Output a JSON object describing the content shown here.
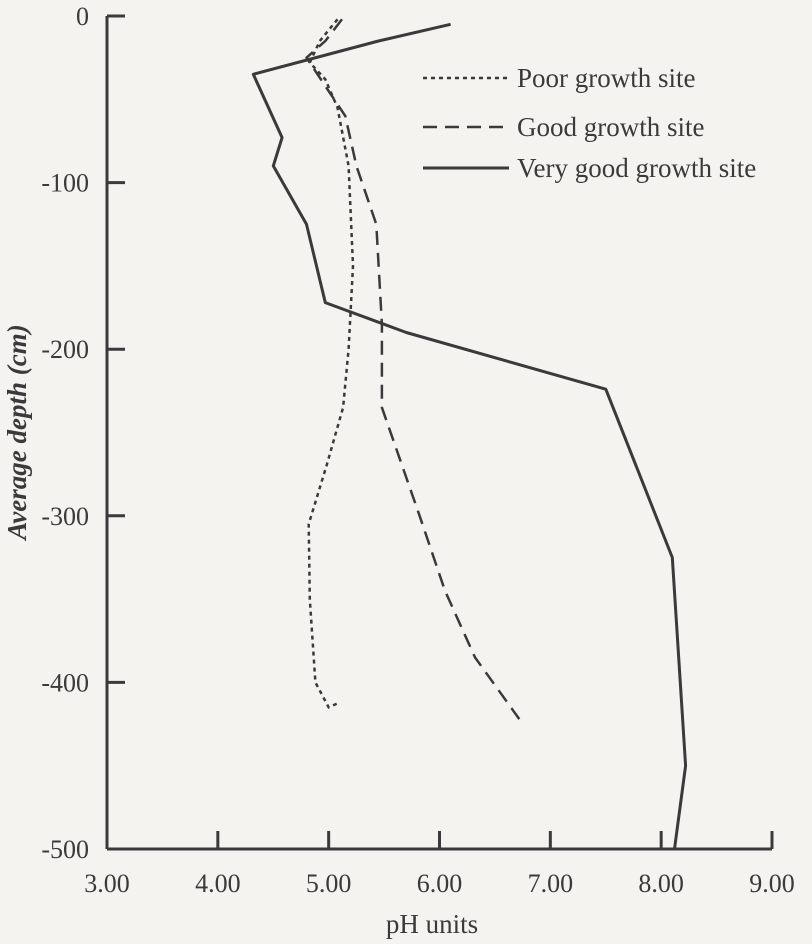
{
  "chart_data": {
    "type": "line",
    "title": "",
    "xlabel": "pH units",
    "ylabel": "Average depth (cm)",
    "xlim": [
      3.0,
      9.0
    ],
    "ylim": [
      -500,
      0
    ],
    "x_ticks": [
      3.0,
      4.0,
      5.0,
      6.0,
      7.0,
      8.0,
      9.0
    ],
    "x_tick_labels": [
      "3.00",
      "4.00",
      "5.00",
      "6.00",
      "7.00",
      "8.00",
      "9.00"
    ],
    "y_ticks": [
      0,
      -100,
      -200,
      -300,
      -400,
      -500
    ],
    "y_tick_labels": [
      "0",
      "-100",
      "-200",
      "-300",
      "-400",
      "-500"
    ],
    "legend_position": "top-right",
    "grid": false,
    "series": [
      {
        "name": "Poor growth site",
        "style": "dotted",
        "points": [
          {
            "x": 5.08,
            "y": -2
          },
          {
            "x": 4.92,
            "y": -15
          },
          {
            "x": 4.83,
            "y": -28
          },
          {
            "x": 4.97,
            "y": -38
          },
          {
            "x": 5.08,
            "y": -55
          },
          {
            "x": 5.18,
            "y": -90
          },
          {
            "x": 5.22,
            "y": -150
          },
          {
            "x": 5.18,
            "y": -200
          },
          {
            "x": 5.13,
            "y": -235
          },
          {
            "x": 4.98,
            "y": -270
          },
          {
            "x": 4.82,
            "y": -305
          },
          {
            "x": 4.83,
            "y": -350
          },
          {
            "x": 4.88,
            "y": -400
          },
          {
            "x": 5.0,
            "y": -415
          },
          {
            "x": 5.1,
            "y": -412
          }
        ]
      },
      {
        "name": "Good growth site",
        "style": "dashed",
        "points": [
          {
            "x": 5.12,
            "y": -2
          },
          {
            "x": 4.97,
            "y": -15
          },
          {
            "x": 4.8,
            "y": -25
          },
          {
            "x": 4.97,
            "y": -42
          },
          {
            "x": 5.15,
            "y": -60
          },
          {
            "x": 5.25,
            "y": -90
          },
          {
            "x": 5.43,
            "y": -125
          },
          {
            "x": 5.48,
            "y": -185
          },
          {
            "x": 5.48,
            "y": -235
          },
          {
            "x": 5.82,
            "y": -300
          },
          {
            "x": 6.05,
            "y": -345
          },
          {
            "x": 6.32,
            "y": -385
          },
          {
            "x": 6.72,
            "y": -422
          }
        ]
      },
      {
        "name": "Very good growth site",
        "style": "solid",
        "points": [
          {
            "x": 6.1,
            "y": -5
          },
          {
            "x": 5.45,
            "y": -15
          },
          {
            "x": 4.32,
            "y": -35
          },
          {
            "x": 4.58,
            "y": -73
          },
          {
            "x": 4.5,
            "y": -90
          },
          {
            "x": 4.8,
            "y": -125
          },
          {
            "x": 4.97,
            "y": -172
          },
          {
            "x": 5.7,
            "y": -190
          },
          {
            "x": 7.5,
            "y": -224
          },
          {
            "x": 8.1,
            "y": -325
          },
          {
            "x": 8.22,
            "y": -450
          },
          {
            "x": 8.12,
            "y": -500
          }
        ]
      }
    ]
  }
}
